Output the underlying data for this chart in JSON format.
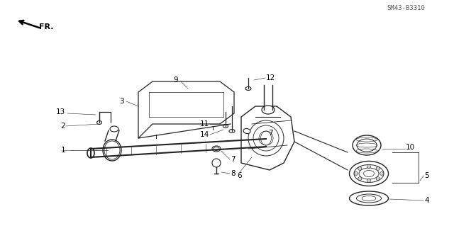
{
  "title": "",
  "background_color": "#ffffff",
  "part_numbers": [
    1,
    2,
    3,
    4,
    5,
    6,
    7,
    8,
    9,
    10,
    11,
    12,
    13,
    14
  ],
  "diagram_code": "SM43-B3310",
  "fr_label": "FR.",
  "fig_width": 6.4,
  "fig_height": 3.19,
  "line_color": "#222222",
  "label_color": "#000000"
}
